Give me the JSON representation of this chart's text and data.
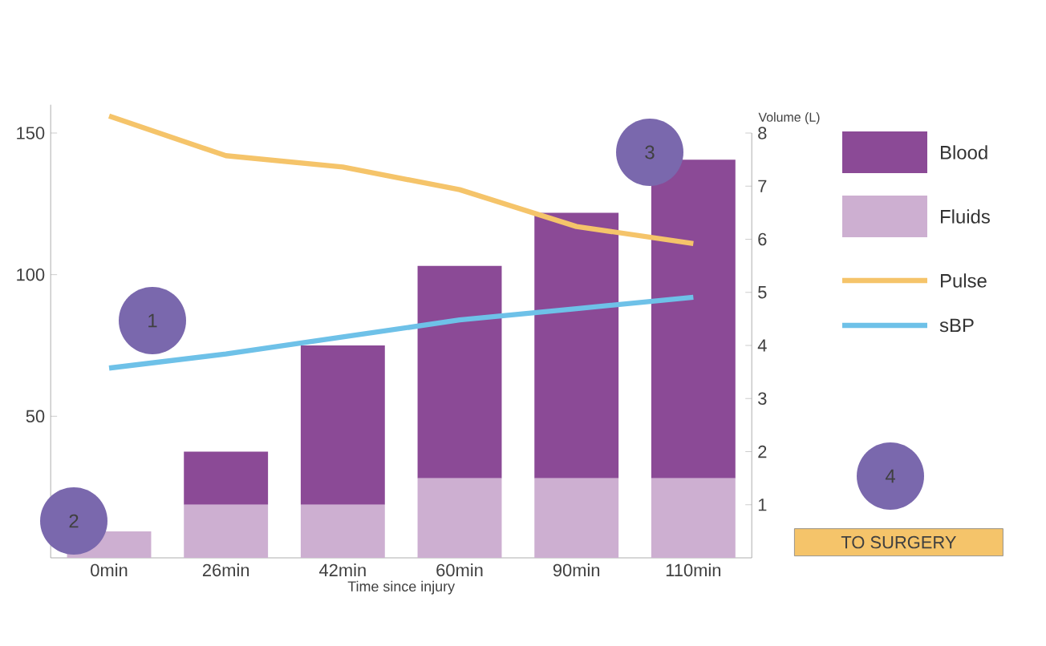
{
  "chart_data": {
    "type": "bar",
    "stacked": true,
    "xlabel": "Time since injury",
    "y2label": "Volume (L)",
    "categories": [
      "0min",
      "26min",
      "42min",
      "60min",
      "90min",
      "110min"
    ],
    "series": [
      {
        "name": "Fluids",
        "axis": "y2",
        "color": "#cdafd1",
        "values": [
          0.5,
          1.0,
          1.0,
          1.5,
          1.5,
          1.5
        ]
      },
      {
        "name": "Blood",
        "axis": "y2",
        "color": "#8b4a96",
        "values": [
          0,
          1.0,
          3.0,
          4.0,
          5.0,
          6.0
        ]
      },
      {
        "name": "Pulse",
        "type": "line",
        "axis": "y",
        "color": "#f5c46a",
        "values": [
          156,
          142,
          138,
          130,
          117,
          111
        ]
      },
      {
        "name": "sBP",
        "type": "line",
        "axis": "y",
        "color": "#6ec1e8",
        "values": [
          67,
          72,
          78,
          84,
          88,
          92
        ]
      }
    ],
    "ylim": [
      0,
      160
    ],
    "yticks": [
      50,
      100,
      150
    ],
    "y2lim": [
      0,
      8
    ],
    "y2ticks": [
      1,
      2,
      3,
      4,
      5,
      6,
      7,
      8
    ],
    "legend": "right",
    "grid": false,
    "marker": "none",
    "line_style": "solid",
    "annotations": [
      "1",
      "2",
      "3",
      "4",
      "TO SURGERY"
    ]
  }
}
